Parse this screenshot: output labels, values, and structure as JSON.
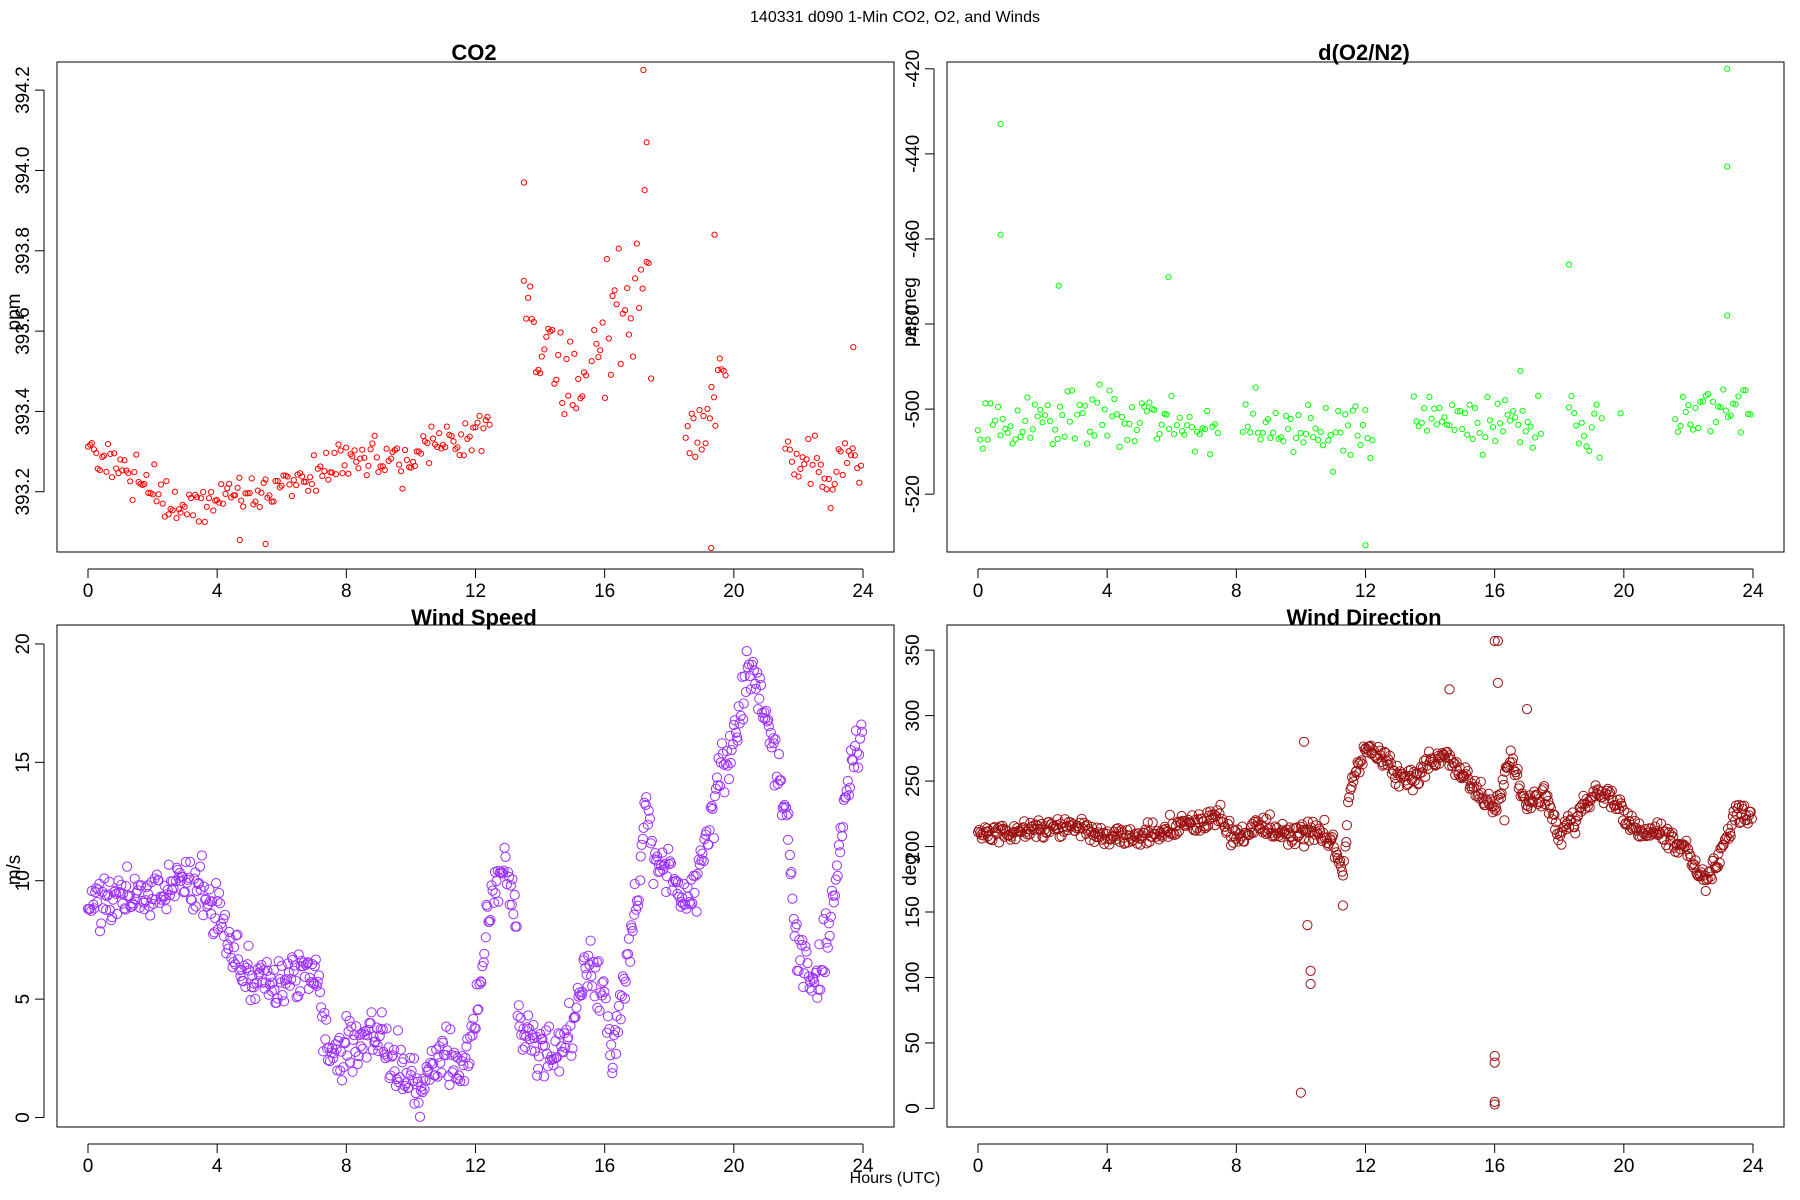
{
  "figure": {
    "main_title": "140331   d090   1-Min CO2, O2, and Winds",
    "xlabel": "Hours (UTC)"
  },
  "chart_data": [
    {
      "type": "scatter",
      "title": "CO2",
      "xlabel": "",
      "ylabel": "ppm",
      "color": "#ff0000",
      "xlim": [
        -0.96,
        24.96
      ],
      "ylim": [
        393.05,
        394.27
      ],
      "xticks": [
        "0",
        "4",
        "8",
        "12",
        "16",
        "20",
        "24"
      ],
      "yticks": [
        "393.2",
        "393.4",
        "393.6",
        "393.8",
        "394.0",
        "394.2"
      ],
      "grid": false,
      "segments": [
        {
          "x": [
            0,
            1,
            2,
            3,
            4,
            5,
            6,
            7,
            8,
            9,
            10,
            11,
            12,
            12.5
          ],
          "y": [
            393.3,
            393.27,
            393.21,
            393.16,
            393.19,
            393.18,
            393.2,
            393.24,
            393.29,
            393.27,
            393.3,
            393.32,
            393.33,
            393.36
          ],
          "spread": 0.04
        },
        {
          "x": [
            13.5,
            14,
            14.5,
            15,
            15.3,
            15.5
          ],
          "y": [
            393.68,
            393.56,
            393.5,
            393.45,
            393.4,
            393.5
          ],
          "spread": 0.07
        },
        {
          "x": [
            15.6,
            16,
            16.5,
            17,
            17.3,
            17.5
          ],
          "y": [
            393.48,
            393.58,
            393.66,
            393.72,
            393.8,
            393.5
          ],
          "spread": 0.12
        },
        {
          "x": [
            18.5,
            19,
            19.5,
            19.8
          ],
          "y": [
            393.3,
            393.37,
            393.42,
            393.56
          ],
          "spread": 0.06
        },
        {
          "x": [
            21.6,
            22,
            22.5,
            23,
            23.5,
            24
          ],
          "y": [
            393.3,
            393.25,
            393.28,
            393.2,
            393.3,
            393.24
          ],
          "spread": 0.04
        }
      ],
      "outliers": [
        [
          13.5,
          393.97
        ],
        [
          17.2,
          394.25
        ],
        [
          17.3,
          394.07
        ],
        [
          19.3,
          393.06
        ],
        [
          19.4,
          393.84
        ],
        [
          23.7,
          393.56
        ],
        [
          5.5,
          393.07
        ],
        [
          4.7,
          393.08
        ]
      ]
    },
    {
      "type": "scatter",
      "title": "d(O2/N2)",
      "xlabel": "",
      "ylabel": "per meg",
      "color": "#00ff00",
      "xlim": [
        -0.96,
        24.96
      ],
      "ylim": [
        -533.6,
        -418.4
      ],
      "xticks": [
        "0",
        "4",
        "8",
        "12",
        "16",
        "20",
        "24"
      ],
      "yticks": [
        "-520",
        "-500",
        "-480",
        "-460",
        "-440",
        "-420"
      ],
      "grid": false,
      "segments": [
        {
          "x": [
            0,
            2,
            4,
            6,
            7.5
          ],
          "y": [
            -504,
            -503,
            -502,
            -503,
            -505
          ],
          "spread": 5
        },
        {
          "x": [
            8.2,
            10,
            12.3
          ],
          "y": [
            -505,
            -505,
            -506
          ],
          "spread": 6
        },
        {
          "x": [
            13.5,
            15,
            17.5
          ],
          "y": [
            -503,
            -503,
            -504
          ],
          "spread": 5
        },
        {
          "x": [
            18.3,
            19.4
          ],
          "y": [
            -503,
            -508
          ],
          "spread": 5
        },
        {
          "x": [
            21.6,
            23,
            24
          ],
          "y": [
            -502,
            -500,
            -502
          ],
          "spread": 5
        }
      ],
      "outliers": [
        [
          0.7,
          -433
        ],
        [
          0.7,
          -459
        ],
        [
          5.9,
          -469
        ],
        [
          2.5,
          -471
        ],
        [
          12.0,
          -532
        ],
        [
          18.3,
          -466
        ],
        [
          23.2,
          -420
        ],
        [
          23.2,
          -443
        ],
        [
          23.2,
          -478
        ],
        [
          16.8,
          -491
        ],
        [
          19.9,
          -501
        ]
      ]
    },
    {
      "type": "scatter",
      "title": "Wind Speed",
      "xlabel": "",
      "ylabel": "m/s",
      "color": "#9b30ff",
      "xlim": [
        -0.96,
        24.96
      ],
      "ylim": [
        -0.4,
        20.8
      ],
      "xticks": [
        "0",
        "4",
        "8",
        "12",
        "16",
        "20",
        "24"
      ],
      "yticks": [
        "0",
        "5",
        "10",
        "15",
        "20"
      ],
      "grid": false,
      "segments": [
        {
          "x": [
            0,
            1,
            2,
            3,
            4,
            4.5,
            5,
            6,
            7,
            7.5,
            8,
            9,
            10,
            10.3,
            11,
            11.5,
            12,
            12.5,
            13,
            13.3
          ],
          "y": [
            9,
            9.2,
            9.5,
            10,
            8.8,
            6.8,
            6,
            5.8,
            6.2,
            2.8,
            3,
            3.5,
            1.5,
            1,
            3,
            2,
            4,
            9.5,
            10.5,
            8
          ],
          "spread": 0.8
        },
        {
          "x": [
            13.3,
            14,
            14.5,
            15,
            15.5,
            16,
            16.2,
            16.5,
            17,
            17.3,
            17.5,
            18,
            18.5,
            19,
            19.5,
            20,
            20.5,
            21,
            21.3,
            21.7,
            22,
            22.5,
            23,
            23.5,
            24
          ],
          "y": [
            4,
            3,
            3,
            4,
            6.5,
            5.5,
            2,
            5,
            9,
            13.5,
            11,
            10.5,
            9,
            10.5,
            14,
            16,
            19,
            17,
            15,
            12,
            6.5,
            5.5,
            8,
            14,
            17
          ],
          "spread": 0.8
        }
      ],
      "outliers": []
    },
    {
      "type": "scatter",
      "title": "Wind Direction",
      "xlabel": "",
      "ylabel": "deg",
      "color": "#9b1010",
      "xlim": [
        -0.96,
        24.96
      ],
      "ylim": [
        -14.2,
        369.2
      ],
      "xticks": [
        "0",
        "4",
        "8",
        "12",
        "16",
        "20",
        "24"
      ],
      "yticks": [
        "0",
        "50",
        "100",
        "150",
        "200",
        "250",
        "300",
        "350"
      ],
      "grid": false,
      "segments": [
        {
          "x": [
            0,
            1,
            2,
            3,
            4,
            5,
            6,
            7,
            7.5,
            8,
            8.5,
            9,
            9.5,
            10,
            10.5,
            11,
            11.3,
            11.5,
            12,
            12.5,
            13,
            13.5,
            14,
            14.5,
            15,
            15.5,
            16,
            16.5,
            17,
            17.5,
            18,
            18.5,
            19,
            19.5,
            20,
            20.5,
            21,
            21.5,
            22,
            22.5,
            23,
            23.5,
            24
          ],
          "y": [
            210,
            212,
            213,
            215,
            208,
            207,
            215,
            220,
            225,
            205,
            215,
            215,
            210,
            210,
            215,
            200,
            180,
            240,
            275,
            270,
            255,
            250,
            265,
            270,
            255,
            240,
            230,
            270,
            230,
            240,
            210,
            220,
            238,
            240,
            225,
            210,
            212,
            205,
            195,
            172,
            195,
            225,
            222
          ],
          "spread": 6
        }
      ],
      "outliers": [
        [
          10.0,
          12
        ],
        [
          10.1,
          200
        ],
        [
          10.2,
          140
        ],
        [
          10.3,
          105
        ],
        [
          10.3,
          95
        ],
        [
          10.1,
          280
        ],
        [
          11.3,
          155
        ],
        [
          14.6,
          320
        ],
        [
          16.0,
          357
        ],
        [
          16.1,
          357
        ],
        [
          16.0,
          40
        ],
        [
          16.0,
          35
        ],
        [
          16.0,
          5
        ],
        [
          16.0,
          3
        ],
        [
          16.1,
          325
        ],
        [
          16.3,
          220
        ],
        [
          17.0,
          305
        ]
      ]
    }
  ]
}
